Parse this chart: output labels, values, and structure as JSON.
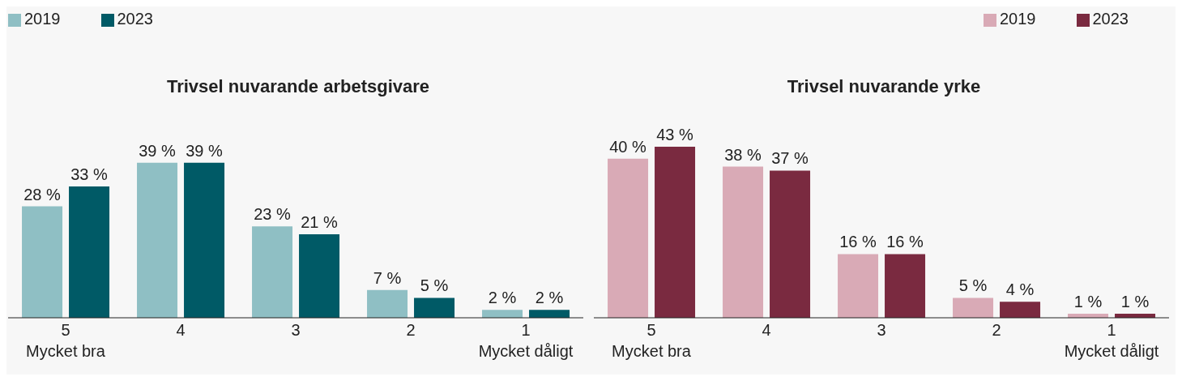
{
  "chart_data": [
    {
      "type": "bar",
      "title": "Trivsel nuvarande arbetsgivare",
      "categories": [
        "5\nMycket bra",
        "4",
        "3",
        "2",
        "1\nMycket dåligt"
      ],
      "legend": "top left",
      "series": [
        {
          "name": "2019",
          "color": "#8fbfc4",
          "values": [
            28,
            39,
            23,
            7,
            2
          ],
          "value_labels": [
            "28 %",
            "39 %",
            "23 %",
            "7 %",
            "2 %"
          ]
        },
        {
          "name": "2023",
          "color": "#005a66",
          "values": [
            33,
            39,
            21,
            5,
            2
          ],
          "value_labels": [
            "33 %",
            "39 %",
            "21 %",
            "5 %",
            "2 %"
          ]
        }
      ]
    },
    {
      "type": "bar",
      "title": "Trivsel nuvarande yrke",
      "categories": [
        "5\nMycket bra",
        "4",
        "3",
        "2",
        "1\nMycket dåligt"
      ],
      "legend": "top right",
      "series": [
        {
          "name": "2019",
          "color": "#d9aab6",
          "values": [
            40,
            38,
            16,
            5,
            1
          ],
          "value_labels": [
            "40 %",
            "38 %",
            "16 %",
            "5 %",
            "1 %"
          ]
        },
        {
          "name": "2023",
          "color": "#7a2a40",
          "values": [
            43,
            37,
            16,
            4,
            1
          ],
          "value_labels": [
            "43 %",
            "37 %",
            "16 %",
            "4 %",
            "1 %"
          ]
        }
      ]
    }
  ]
}
